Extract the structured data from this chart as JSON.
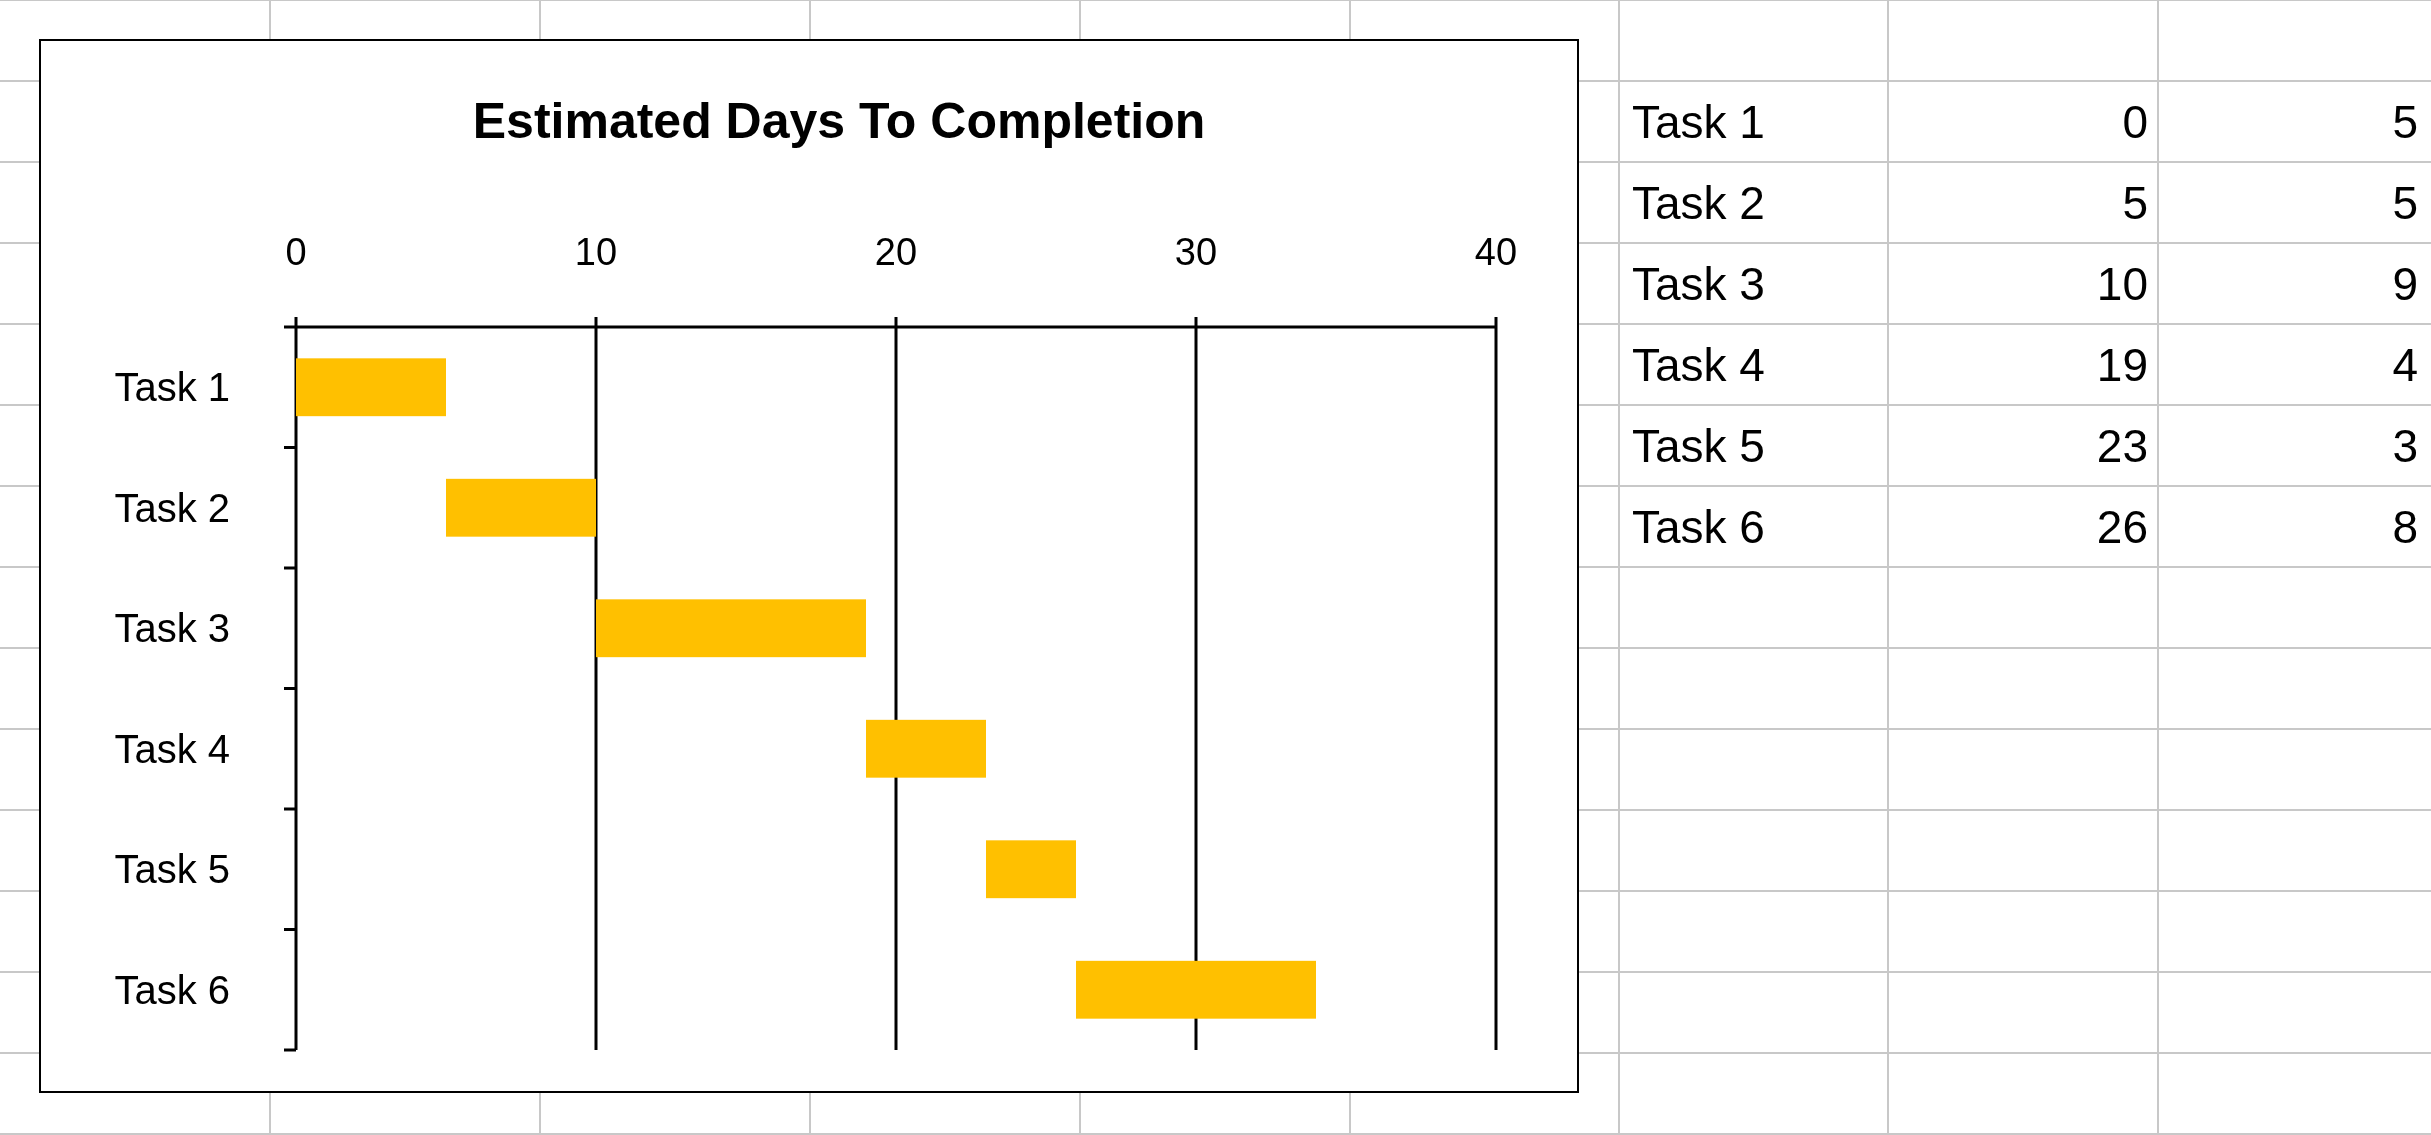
{
  "chart_data": [
    {
      "type": "bar",
      "orientation": "horizontal",
      "title": "Estimated Days To Completion",
      "categories": [
        "Task 1",
        "Task 2",
        "Task 3",
        "Task 4",
        "Task 5",
        "Task 6"
      ],
      "base": [
        0,
        5,
        10,
        19,
        23,
        26
      ],
      "values": [
        5,
        5,
        9,
        4,
        3,
        8
      ],
      "color": "#ffc000",
      "xlim": [
        0,
        40
      ],
      "xticks": [
        0,
        10,
        20,
        30,
        40
      ],
      "grid": "x"
    },
    {
      "type": "other",
      "categories": [
        "Task 1",
        "Task 2",
        "Task 3",
        "Task 4",
        "Task 5",
        "Task 6"
      ],
      "series": [
        {
          "values": [
            0,
            5,
            10,
            19,
            23,
            26
          ]
        },
        {
          "values": [
            5,
            5,
            9,
            4,
            3,
            8
          ]
        }
      ],
      "data_labels": true
    }
  ]
}
